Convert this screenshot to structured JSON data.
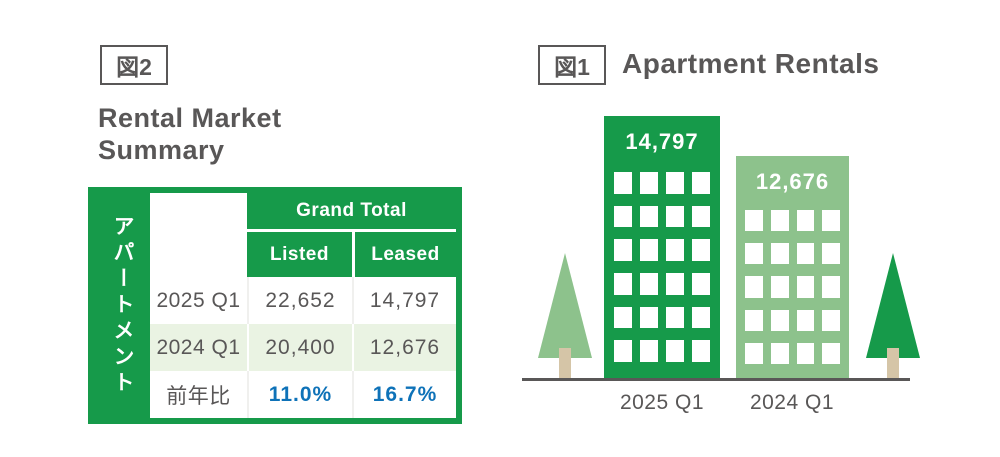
{
  "colors": {
    "green": "#169a4a",
    "light_green": "#8dc28c",
    "pale_green": "#eaf3e3",
    "blue": "#0e72b8",
    "text_gray": "#595757",
    "trunk_tan": "#d5c5a7",
    "line_gray": "#595757"
  },
  "fig2": {
    "tag": "図2",
    "title": "Rental Market\nSummary",
    "table": {
      "vertical_label": "アパートメント",
      "group_header": "Grand Total",
      "col_headers": [
        "Listed",
        "Leased"
      ],
      "rows": [
        {
          "label": "2025 Q1",
          "listed": "22,652",
          "leased": "14,797"
        },
        {
          "label": "2024 Q1",
          "listed": "20,400",
          "leased": "12,676"
        },
        {
          "label": "前年比",
          "listed": "11.0%",
          "leased": "16.7%"
        }
      ]
    }
  },
  "fig1": {
    "tag": "図1",
    "title": "Apartment Rentals",
    "buildings": [
      {
        "value": "14,797",
        "label": "2025 Q1"
      },
      {
        "value": "12,676",
        "label": "2024 Q1"
      }
    ]
  },
  "chart_data": [
    {
      "type": "table",
      "title": "Rental Market Summary",
      "group_label": "アパートメント",
      "columns": [
        "",
        "Grand Total / Listed",
        "Grand Total / Leased"
      ],
      "rows": [
        [
          "2025 Q1",
          22652,
          14797
        ],
        [
          "2024 Q1",
          20400,
          12676
        ],
        [
          "前年比",
          "11.0%",
          "16.7%"
        ]
      ]
    },
    {
      "type": "bar",
      "title": "Apartment Rentals",
      "categories": [
        "2025 Q1",
        "2024 Q1"
      ],
      "values": [
        14797,
        12676
      ],
      "bar_labels": [
        "14,797",
        "12,676"
      ],
      "bar_colors": [
        "#169a4a",
        "#8dc28c"
      ],
      "xlabel": "",
      "ylabel": "",
      "legend": false,
      "grid": false
    }
  ]
}
